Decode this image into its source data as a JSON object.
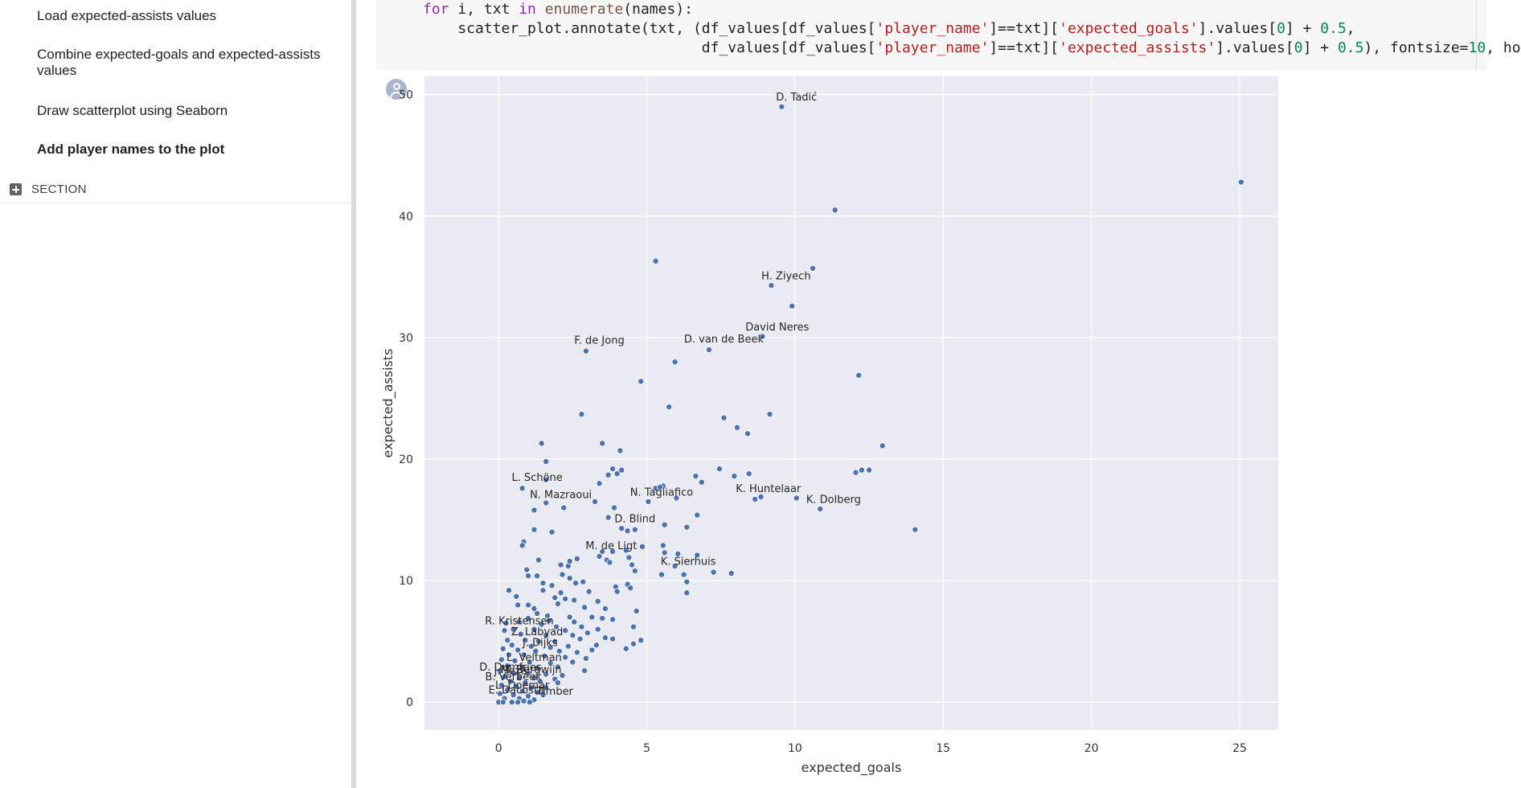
{
  "sidebar": {
    "items": [
      {
        "label": "Load expected-assists values"
      },
      {
        "label": "Combine expected-goals and expected-assists values"
      },
      {
        "label": "Draw scatterplot using Seaborn"
      },
      {
        "label": "Add player names to the plot"
      }
    ],
    "section_label": "SECTION"
  },
  "code": {
    "lines": [
      "for i, txt in enumerate(names):",
      "    scatter_plot.annotate(txt, (df_values[df_values['player_name']==txt]['expected_goals'].values[0] + 0.5,",
      "                                df_values[df_values['player_name']==txt]['expected_assists'].values[0] + 0.5), fontsize=10, ho"
    ]
  },
  "chart_data": {
    "type": "scatter",
    "xlabel": "expected_goals",
    "ylabel": "expected_assists",
    "xlim": [
      -2.5,
      26.3
    ],
    "ylim": [
      -2.3,
      51.5
    ],
    "xticks": [
      0,
      5,
      10,
      15,
      20,
      25
    ],
    "yticks": [
      0,
      10,
      20,
      30,
      40,
      50
    ],
    "grid": true,
    "background": "#eaeaf2",
    "point_color": "#4c72b0",
    "annotations": [
      {
        "text": "D. Tadić",
        "x": 9.55,
        "y": 49.0
      },
      {
        "text": "H. Ziyech",
        "x": 9.2,
        "y": 34.3
      },
      {
        "text": "David Neres",
        "x": 8.9,
        "y": 30.1
      },
      {
        "text": "F. de Jong",
        "x": 2.9,
        "y": 29.0
      },
      {
        "text": "D. van de Beek",
        "x": 7.1,
        "y": 29.1
      },
      {
        "text": "L. Schöne",
        "x": 0.8,
        "y": 17.7
      },
      {
        "text": "N. Mazraoui",
        "x": 1.6,
        "y": 16.3
      },
      {
        "text": "N. Tagliafico",
        "x": 5.0,
        "y": 16.5
      },
      {
        "text": "K. Huntelaar",
        "x": 8.6,
        "y": 16.8
      },
      {
        "text": "K. Dolberg",
        "x": 10.8,
        "y": 15.9
      },
      {
        "text": "D. Blind",
        "x": 4.1,
        "y": 14.3
      },
      {
        "text": "M. de Ligt",
        "x": 3.3,
        "y": 12.1
      },
      {
        "text": "K. Sierhuis",
        "x": 5.9,
        "y": 10.8
      },
      {
        "text": "R. Kristensen",
        "x": 0.2,
        "y": 5.9
      },
      {
        "text": "Z. Labyad",
        "x": 0.8,
        "y": 5.0
      },
      {
        "text": "J. Dijks",
        "x": 0.9,
        "y": 4.1
      },
      {
        "text": "L. Veltman",
        "x": 0.7,
        "y": 2.9
      },
      {
        "text": "D. Dumfries",
        "x": -0.1,
        "y": 2.1
      },
      {
        "text": "J. Teze",
        "x": -0.1,
        "y": 1.8
      },
      {
        "text": "M. Bergwijn",
        "x": 0.6,
        "y": 1.9
      },
      {
        "text": "B. Verbeek",
        "x": 0.0,
        "y": 1.3
      },
      {
        "text": "L. Doemar",
        "x": 0.3,
        "y": 0.6
      },
      {
        "text": "E. Dacosta",
        "x": 0.1,
        "y": 0.2
      },
      {
        "text": "Timber",
        "x": 1.4,
        "y": 0.1
      }
    ],
    "points": [
      [
        9.55,
        49.0
      ],
      [
        25.05,
        42.8
      ],
      [
        11.35,
        40.5
      ],
      [
        5.3,
        36.3
      ],
      [
        10.6,
        35.7
      ],
      [
        9.2,
        34.3
      ],
      [
        9.9,
        32.6
      ],
      [
        8.9,
        30.1
      ],
      [
        2.95,
        28.9
      ],
      [
        7.1,
        29.0
      ],
      [
        5.95,
        28.0
      ],
      [
        12.15,
        26.9
      ],
      [
        4.8,
        26.4
      ],
      [
        5.75,
        24.3
      ],
      [
        2.8,
        23.7
      ],
      [
        9.15,
        23.7
      ],
      [
        7.6,
        23.4
      ],
      [
        8.05,
        22.6
      ],
      [
        8.4,
        22.1
      ],
      [
        12.95,
        21.1
      ],
      [
        1.45,
        21.3
      ],
      [
        3.5,
        21.3
      ],
      [
        4.1,
        20.7
      ],
      [
        1.6,
        19.8
      ],
      [
        3.85,
        19.2
      ],
      [
        4.15,
        19.1
      ],
      [
        7.45,
        19.2
      ],
      [
        12.25,
        19.1
      ],
      [
        12.5,
        19.1
      ],
      [
        12.05,
        18.9
      ],
      [
        3.7,
        18.7
      ],
      [
        4.0,
        18.8
      ],
      [
        8.45,
        18.8
      ],
      [
        6.65,
        18.6
      ],
      [
        7.95,
        18.6
      ],
      [
        1.6,
        18.3
      ],
      [
        3.4,
        18.0
      ],
      [
        5.55,
        17.8
      ],
      [
        6.85,
        18.1
      ],
      [
        0.8,
        17.6
      ],
      [
        5.3,
        17.6
      ],
      [
        5.45,
        17.7
      ],
      [
        8.85,
        16.9
      ],
      [
        8.65,
        16.7
      ],
      [
        10.05,
        16.8
      ],
      [
        6.0,
        16.8
      ],
      [
        3.25,
        16.5
      ],
      [
        5.05,
        16.5
      ],
      [
        1.6,
        16.4
      ],
      [
        2.2,
        16.0
      ],
      [
        1.2,
        15.8
      ],
      [
        10.85,
        15.9
      ],
      [
        3.9,
        16.0
      ],
      [
        6.7,
        15.4
      ],
      [
        3.7,
        15.2
      ],
      [
        5.6,
        14.6
      ],
      [
        4.15,
        14.3
      ],
      [
        4.35,
        14.1
      ],
      [
        4.6,
        14.2
      ],
      [
        6.35,
        14.4
      ],
      [
        1.2,
        14.2
      ],
      [
        14.05,
        14.2
      ],
      [
        1.8,
        14.0
      ],
      [
        0.85,
        13.2
      ],
      [
        0.8,
        12.9
      ],
      [
        3.5,
        12.4
      ],
      [
        4.3,
        12.5
      ],
      [
        4.85,
        12.8
      ],
      [
        5.55,
        12.9
      ],
      [
        3.85,
        12.4
      ],
      [
        5.6,
        12.3
      ],
      [
        6.05,
        12.2
      ],
      [
        6.7,
        12.1
      ],
      [
        3.4,
        12.0
      ],
      [
        1.35,
        11.7
      ],
      [
        2.65,
        11.8
      ],
      [
        4.4,
        11.9
      ],
      [
        3.65,
        11.7
      ],
      [
        2.35,
        11.2
      ],
      [
        2.4,
        11.6
      ],
      [
        2.1,
        11.3
      ],
      [
        4.5,
        11.3
      ],
      [
        4.6,
        10.8
      ],
      [
        5.95,
        11.2
      ],
      [
        3.75,
        11.5
      ],
      [
        0.95,
        10.9
      ],
      [
        1.0,
        10.4
      ],
      [
        1.3,
        10.4
      ],
      [
        2.15,
        10.5
      ],
      [
        2.4,
        10.2
      ],
      [
        5.5,
        10.5
      ],
      [
        6.25,
        10.5
      ],
      [
        7.25,
        10.7
      ],
      [
        7.85,
        10.6
      ],
      [
        1.5,
        9.8
      ],
      [
        1.8,
        9.6
      ],
      [
        2.6,
        9.8
      ],
      [
        2.85,
        9.9
      ],
      [
        3.95,
        9.5
      ],
      [
        4.35,
        9.7
      ],
      [
        6.35,
        9.9
      ],
      [
        4.45,
        9.4
      ],
      [
        6.35,
        9.0
      ],
      [
        4.0,
        9.1
      ],
      [
        0.35,
        9.2
      ],
      [
        1.5,
        9.2
      ],
      [
        2.1,
        9.0
      ],
      [
        3.05,
        9.1
      ],
      [
        0.6,
        8.7
      ],
      [
        1.9,
        8.6
      ],
      [
        2.25,
        8.5
      ],
      [
        2.55,
        8.4
      ],
      [
        3.35,
        8.3
      ],
      [
        0.65,
        8.0
      ],
      [
        1.0,
        8.0
      ],
      [
        1.2,
        7.7
      ],
      [
        2.0,
        8.1
      ],
      [
        2.9,
        7.8
      ],
      [
        3.6,
        7.7
      ],
      [
        4.65,
        7.5
      ],
      [
        1.3,
        7.3
      ],
      [
        1.65,
        7.1
      ],
      [
        2.4,
        7.0
      ],
      [
        3.15,
        7.0
      ],
      [
        1.0,
        6.9
      ],
      [
        1.7,
        6.7
      ],
      [
        2.55,
        6.6
      ],
      [
        3.5,
        6.9
      ],
      [
        3.85,
        6.8
      ],
      [
        0.25,
        6.5
      ],
      [
        0.7,
        6.6
      ],
      [
        1.45,
        6.4
      ],
      [
        1.95,
        6.2
      ],
      [
        2.8,
        6.2
      ],
      [
        3.35,
        6.0
      ],
      [
        0.5,
        6.0
      ],
      [
        1.2,
        6.0
      ],
      [
        2.25,
        5.9
      ],
      [
        3.0,
        5.7
      ],
      [
        4.55,
        6.2
      ],
      [
        0.2,
        5.9
      ],
      [
        0.75,
        5.6
      ],
      [
        1.6,
        5.5
      ],
      [
        2.5,
        5.5
      ],
      [
        3.6,
        5.3
      ],
      [
        3.85,
        5.2
      ],
      [
        4.8,
        5.1
      ],
      [
        0.3,
        5.1
      ],
      [
        0.9,
        5.1
      ],
      [
        1.35,
        5.0
      ],
      [
        1.9,
        5.0
      ],
      [
        2.75,
        5.2
      ],
      [
        4.55,
        4.8
      ],
      [
        0.45,
        4.7
      ],
      [
        1.1,
        4.6
      ],
      [
        1.75,
        4.5
      ],
      [
        2.35,
        4.6
      ],
      [
        3.3,
        4.7
      ],
      [
        4.3,
        4.4
      ],
      [
        0.15,
        4.4
      ],
      [
        0.65,
        4.3
      ],
      [
        1.25,
        4.2
      ],
      [
        2.05,
        4.2
      ],
      [
        2.65,
        4.1
      ],
      [
        3.15,
        4.3
      ],
      [
        0.35,
        3.9
      ],
      [
        0.85,
        3.9
      ],
      [
        1.55,
        3.8
      ],
      [
        2.25,
        3.7
      ],
      [
        2.95,
        3.6
      ],
      [
        0.1,
        3.5
      ],
      [
        0.55,
        3.4
      ],
      [
        1.05,
        3.3
      ],
      [
        1.75,
        3.2
      ],
      [
        2.5,
        3.3
      ],
      [
        0.3,
        3.0
      ],
      [
        0.8,
        2.9
      ],
      [
        1.3,
        2.8
      ],
      [
        2.0,
        2.9
      ],
      [
        2.9,
        2.6
      ],
      [
        0.05,
        2.6
      ],
      [
        0.5,
        2.4
      ],
      [
        1.0,
        2.4
      ],
      [
        1.6,
        2.3
      ],
      [
        2.15,
        2.2
      ],
      [
        0.2,
        2.1
      ],
      [
        0.7,
        2.0
      ],
      [
        1.2,
        2.0
      ],
      [
        1.9,
        1.9
      ],
      [
        0.4,
        1.7
      ],
      [
        0.9,
        1.6
      ],
      [
        1.4,
        1.7
      ],
      [
        2.0,
        1.6
      ],
      [
        0.1,
        1.4
      ],
      [
        0.6,
        1.3
      ],
      [
        1.1,
        1.2
      ],
      [
        1.6,
        1.2
      ],
      [
        0.3,
        1.0
      ],
      [
        0.8,
        0.9
      ],
      [
        1.3,
        0.8
      ],
      [
        0.05,
        0.7
      ],
      [
        0.5,
        0.6
      ],
      [
        1.0,
        0.5
      ],
      [
        1.5,
        0.6
      ],
      [
        0.2,
        0.3
      ],
      [
        0.7,
        0.3
      ],
      [
        1.2,
        0.2
      ],
      [
        0.0,
        0.0
      ],
      [
        0.15,
        0.0
      ],
      [
        0.45,
        0.0
      ],
      [
        0.65,
        0.0
      ],
      [
        0.85,
        0.1
      ],
      [
        1.05,
        0.0
      ]
    ]
  }
}
